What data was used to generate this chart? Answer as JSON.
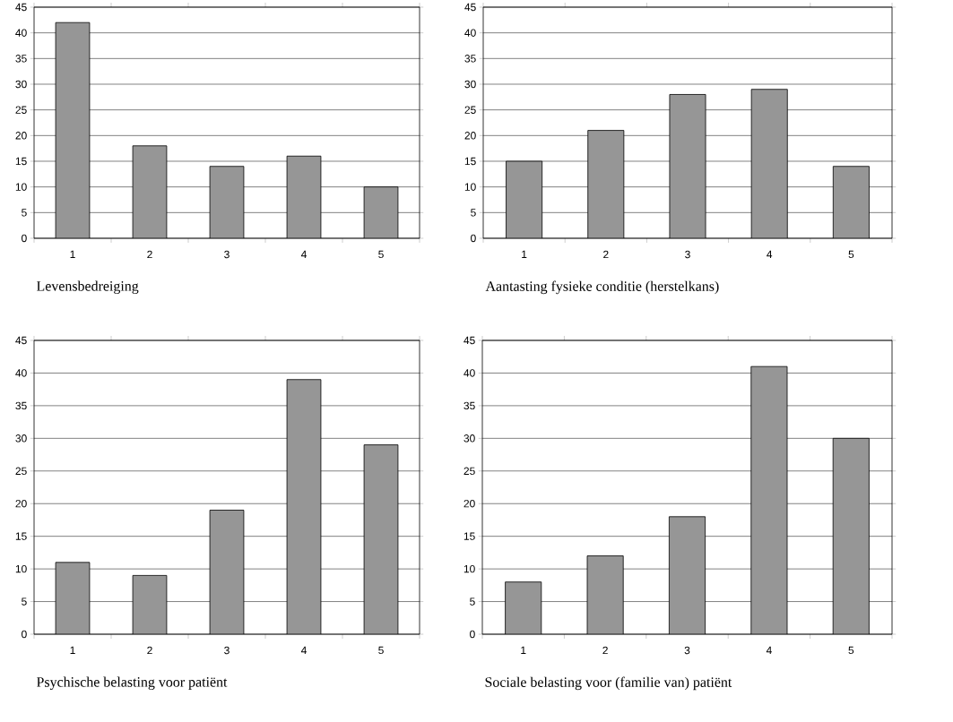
{
  "chart_data": [
    {
      "type": "bar",
      "xlabel": "Levensbedreiging",
      "categories": [
        "1",
        "2",
        "3",
        "4",
        "5"
      ],
      "values": [
        42,
        18,
        14,
        16,
        10
      ],
      "color": "#969696",
      "ylim": [
        0,
        45
      ],
      "yticks": [
        0,
        5,
        10,
        15,
        20,
        25,
        30,
        35,
        40,
        45
      ],
      "grid": "y"
    },
    {
      "type": "bar",
      "xlabel": "Aantasting fysieke conditie (herstelkans)",
      "categories": [
        "1",
        "2",
        "3",
        "4",
        "5"
      ],
      "values": [
        15,
        21,
        28,
        29,
        14
      ],
      "color": "#969696",
      "ylim": [
        0,
        45
      ],
      "yticks": [
        0,
        5,
        10,
        15,
        20,
        25,
        30,
        35,
        40,
        45
      ],
      "grid": "y"
    },
    {
      "type": "bar",
      "xlabel": "Psychische belasting voor patiënt",
      "categories": [
        "1",
        "2",
        "3",
        "4",
        "5"
      ],
      "values": [
        11,
        9,
        19,
        39,
        29
      ],
      "color": "#969696",
      "ylim": [
        0,
        45
      ],
      "yticks": [
        0,
        5,
        10,
        15,
        20,
        25,
        30,
        35,
        40,
        45
      ],
      "grid": "y"
    },
    {
      "type": "bar",
      "xlabel": "Sociale belasting voor (familie van) patiënt",
      "categories": [
        "1",
        "2",
        "3",
        "4",
        "5"
      ],
      "values": [
        8,
        12,
        18,
        41,
        30
      ],
      "color": "#969696",
      "ylim": [
        0,
        45
      ],
      "yticks": [
        0,
        5,
        10,
        15,
        20,
        25,
        30,
        35,
        40,
        45
      ],
      "grid": "y"
    }
  ]
}
